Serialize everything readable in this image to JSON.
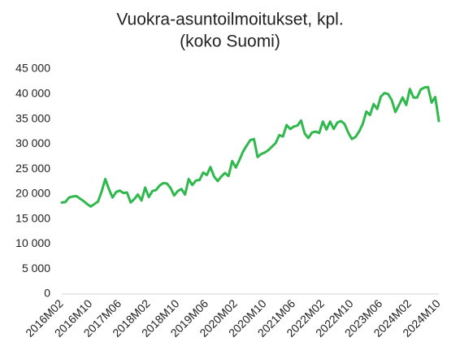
{
  "chart_data": {
    "type": "line",
    "title": [
      "Vuokra-asuntoilmoitukset, kpl.",
      "(koko Suomi)"
    ],
    "categories": [
      "2016M02",
      null,
      null,
      null,
      null,
      null,
      null,
      null,
      "2016M10",
      null,
      null,
      null,
      null,
      null,
      null,
      null,
      "2017M06",
      null,
      null,
      null,
      null,
      null,
      null,
      null,
      "2018M02",
      null,
      null,
      null,
      null,
      null,
      null,
      null,
      "2018M10",
      null,
      null,
      null,
      null,
      null,
      null,
      null,
      "2019M06",
      null,
      null,
      null,
      null,
      null,
      null,
      null,
      "2020M02",
      null,
      null,
      null,
      null,
      null,
      null,
      null,
      "2020M10",
      null,
      null,
      null,
      null,
      null,
      null,
      null,
      "2021M06",
      null,
      null,
      null,
      null,
      null,
      null,
      null,
      "2022M02",
      null,
      null,
      null,
      null,
      null,
      null,
      null,
      "2022M10",
      null,
      null,
      null,
      null,
      null,
      null,
      null,
      "2023M06",
      null,
      null,
      null,
      null,
      null,
      null,
      null,
      "2024M02",
      null,
      null,
      null,
      null,
      null,
      null,
      null,
      "2024M10"
    ],
    "values": [
      18300,
      18400,
      19300,
      19500,
      19600,
      19100,
      18600,
      18000,
      17500,
      18000,
      18500,
      20500,
      23000,
      21000,
      19300,
      20400,
      20700,
      20200,
      20300,
      18300,
      19000,
      19900,
      18700,
      21300,
      19400,
      20600,
      20800,
      21700,
      22200,
      22100,
      21200,
      19700,
      20600,
      21000,
      19900,
      23000,
      21800,
      22700,
      22800,
      24300,
      23800,
      25400,
      23500,
      22600,
      23500,
      24200,
      23600,
      26600,
      25300,
      26800,
      28500,
      29700,
      30800,
      31000,
      27400,
      28000,
      28300,
      28800,
      29500,
      30200,
      31800,
      31500,
      33800,
      33000,
      33500,
      33700,
      34700,
      32100,
      31200,
      32300,
      32500,
      32200,
      34500,
      32900,
      34500,
      33000,
      34300,
      34600,
      34000,
      32300,
      31000,
      31400,
      32500,
      34000,
      36500,
      35800,
      38000,
      37000,
      39500,
      40200,
      40000,
      38800,
      36400,
      37800,
      39300,
      37800,
      41000,
      39300,
      39300,
      40900,
      41300,
      41400,
      38300,
      39400,
      34600
    ],
    "color": "#2fb84c",
    "ylim": [
      0,
      45000
    ],
    "yticks": [
      0,
      {
        "value": 5000,
        "label": "5 000"
      },
      {
        "value": 10000,
        "label": "10 000"
      },
      {
        "value": 15000,
        "label": "15 000"
      },
      {
        "value": 20000,
        "label": "20 000"
      },
      {
        "value": 25000,
        "label": "25 000"
      },
      {
        "value": 30000,
        "label": "30 000"
      },
      {
        "value": 35000,
        "label": "35 000"
      },
      {
        "value": 40000,
        "label": "40 000"
      },
      {
        "value": 45000,
        "label": "45 000"
      }
    ],
    "grid": false
  }
}
